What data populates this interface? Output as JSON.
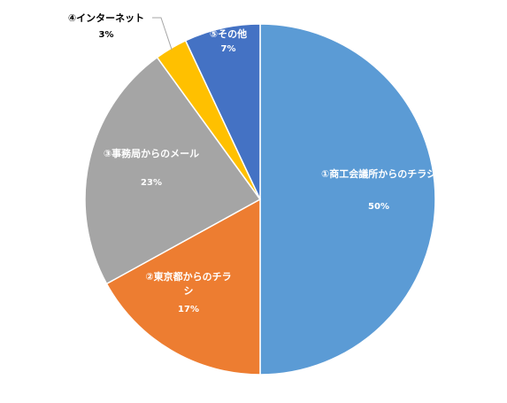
{
  "chart_data": {
    "type": "pie",
    "title": "",
    "categories": [
      "①商工会議所からのチラシ",
      "②東京都からのチラシ",
      "③事務局からのメール",
      "④インターネット",
      "⑤その他"
    ],
    "values": [
      50,
      17,
      23,
      3,
      7
    ],
    "value_labels": [
      "50%",
      "17%",
      "23%",
      "3%",
      "7%"
    ],
    "colors": [
      "#5B9BD5",
      "#ED7D31",
      "#A5A5A5",
      "#FFC000",
      "#4472C4"
    ],
    "label_colors": [
      "#ffffff",
      "#ffffff",
      "#ffffff",
      "#000000",
      "#ffffff"
    ],
    "start": "12 o'clock",
    "direction": "clockwise",
    "legend": "none"
  }
}
